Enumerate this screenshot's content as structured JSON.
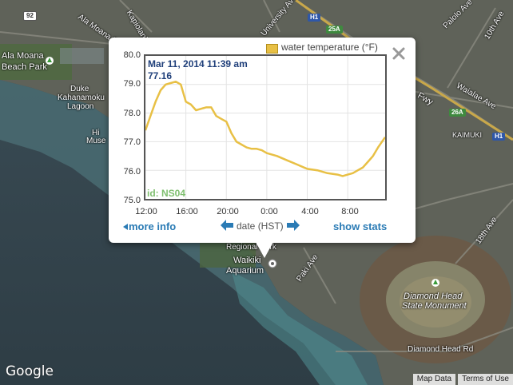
{
  "map": {
    "labels": [
      {
        "text": "Ala Moana",
        "name": "map-label-ala-moana"
      },
      {
        "text": "Beach Park",
        "name": "map-label-beach-park"
      },
      {
        "text": "Duke",
        "name": "map-label-duke"
      },
      {
        "text": "Kahanamoku",
        "name": "map-label-kahanamoku"
      },
      {
        "text": "Lagoon",
        "name": "map-label-lagoon"
      },
      {
        "text": "Hi",
        "name": "map-label-hi"
      },
      {
        "text": "Muse",
        "name": "map-label-muse"
      },
      {
        "text": "Regional Park",
        "name": "map-label-regional-park"
      },
      {
        "text": "Waikiki",
        "name": "map-label-waikiki"
      },
      {
        "text": "Aquarium",
        "name": "map-label-aquarium"
      },
      {
        "text": "Diamond Head",
        "name": "map-label-diamond-head"
      },
      {
        "text": "State Monument",
        "name": "map-label-state-monument"
      },
      {
        "text": "Diamond Head Rd",
        "name": "map-label-diamond-head-rd"
      },
      {
        "text": "KAIMUKI",
        "name": "map-label-kaimuki"
      },
      {
        "text": "Ala Moana Blvd",
        "name": "map-label-ala-moana-blvd"
      },
      {
        "text": "Kapiolani",
        "name": "map-label-kapiolani"
      },
      {
        "text": "University Ave",
        "name": "map-label-university-ave"
      },
      {
        "text": "10th Ave",
        "name": "map-label-10th-ave"
      },
      {
        "text": "Waialae Ave",
        "name": "map-label-waialae-ave"
      },
      {
        "text": "Palolo Ave",
        "name": "map-label-palolo-ave"
      },
      {
        "text": "18th Ave",
        "name": "map-label-18th-ave"
      },
      {
        "text": "Paki Ave",
        "name": "map-label-paki-ave"
      },
      {
        "text": "Fwy",
        "name": "map-label-fwy"
      }
    ],
    "shields": {
      "r92": "92",
      "h1a": "H1",
      "h1b": "H1",
      "r25a": "25A",
      "r26a": "26A"
    }
  },
  "popup": {
    "legend": "water temperature (°F)",
    "hover_date": "Mar 11, 2014 11:39 am",
    "hover_value": "77.16",
    "station_id": "id: NS04",
    "more_info": "more info",
    "axis_title": "date (HST)",
    "show_stats": "show stats"
  },
  "footer": {
    "google": "Google",
    "map_data": "Map Data",
    "terms": "Terms of Use"
  },
  "colors": {
    "series": "#e8c045",
    "link": "#2a7bb5",
    "hover_text": "#1f3f7a",
    "id_text": "#7fbf6f"
  },
  "chart_data": {
    "type": "line",
    "xlabel": "date (HST)",
    "ylabel": "",
    "title": "",
    "x_tick_labels": [
      "12:00",
      "16:00",
      "20:00",
      "0:00",
      "4:00",
      "8:00"
    ],
    "y_tick_labels": [
      "75.0",
      "76.0",
      "77.0",
      "78.0",
      "79.0",
      "80.0"
    ],
    "ylim": [
      75.0,
      80.0
    ],
    "x_unit": "hours since 12:00",
    "xlim": [
      0,
      23.7
    ],
    "series": [
      {
        "name": "water temperature (°F)",
        "x": [
          0,
          0.5,
          1,
          1.5,
          2,
          2.5,
          3,
          3.5,
          4,
          4.5,
          5,
          5.5,
          6,
          6.5,
          7,
          7.5,
          8,
          8.5,
          9,
          9.5,
          10,
          10.5,
          11,
          11.5,
          12,
          13,
          14,
          15,
          16,
          17,
          18,
          19,
          19.5,
          20,
          20.5,
          21,
          21.5,
          22,
          22.5,
          23,
          23.7
        ],
        "y": [
          77.4,
          77.9,
          78.4,
          78.8,
          79.0,
          79.05,
          79.1,
          79.0,
          78.4,
          78.3,
          78.1,
          78.15,
          78.2,
          78.2,
          77.9,
          77.8,
          77.7,
          77.3,
          77.0,
          76.9,
          76.8,
          76.75,
          76.75,
          76.7,
          76.6,
          76.5,
          76.35,
          76.2,
          76.05,
          76.0,
          75.9,
          75.85,
          75.8,
          75.85,
          75.9,
          76.0,
          76.1,
          76.3,
          76.5,
          76.8,
          77.16
        ]
      }
    ]
  }
}
